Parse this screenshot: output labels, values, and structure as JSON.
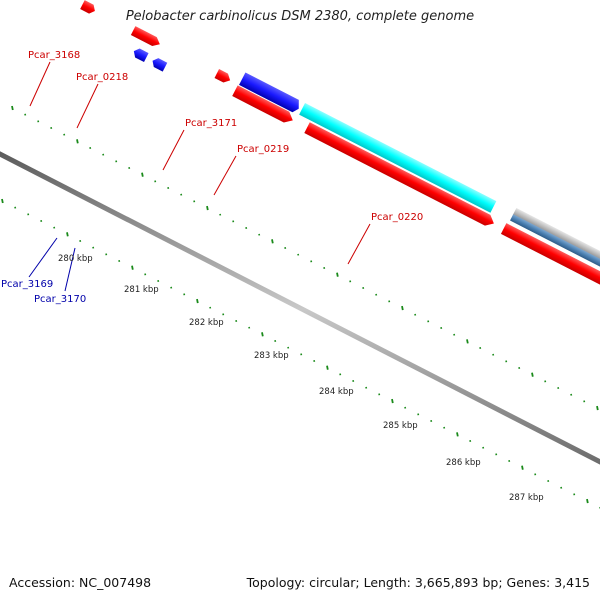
{
  "title": "Pelobacter carbinolicus DSM 2380, complete genome",
  "footer": {
    "accession": "Accession: NC_007498",
    "topology": "Topology: circular; Length: 3,665,893 bp; Genes: 3,415"
  },
  "colors": {
    "forward_cds": "#ff0000",
    "reverse_cds": "#1a1aff",
    "rrna": "#00ffff",
    "other_feature": "#bbbbbb",
    "other_feature_2": "#4a7fb0",
    "tick": "#1a8a1a",
    "backbone": "#8c8c8c",
    "forward_label": "#cc0000",
    "reverse_label": "#0000aa"
  },
  "scale_labels": [
    "280 kbp",
    "281 kbp",
    "282 kbp",
    "283 kbp",
    "284 kbp",
    "285 kbp",
    "286 kbp",
    "287 kbp"
  ],
  "gene_labels": {
    "pcar_3168": "Pcar_3168",
    "pcar_0218": "Pcar_0218",
    "pcar_3171": "Pcar_3171",
    "pcar_0219": "Pcar_0219",
    "pcar_0220": "Pcar_0220",
    "pcar_3169": "Pcar_3169",
    "pcar_3170": "Pcar_3170"
  }
}
